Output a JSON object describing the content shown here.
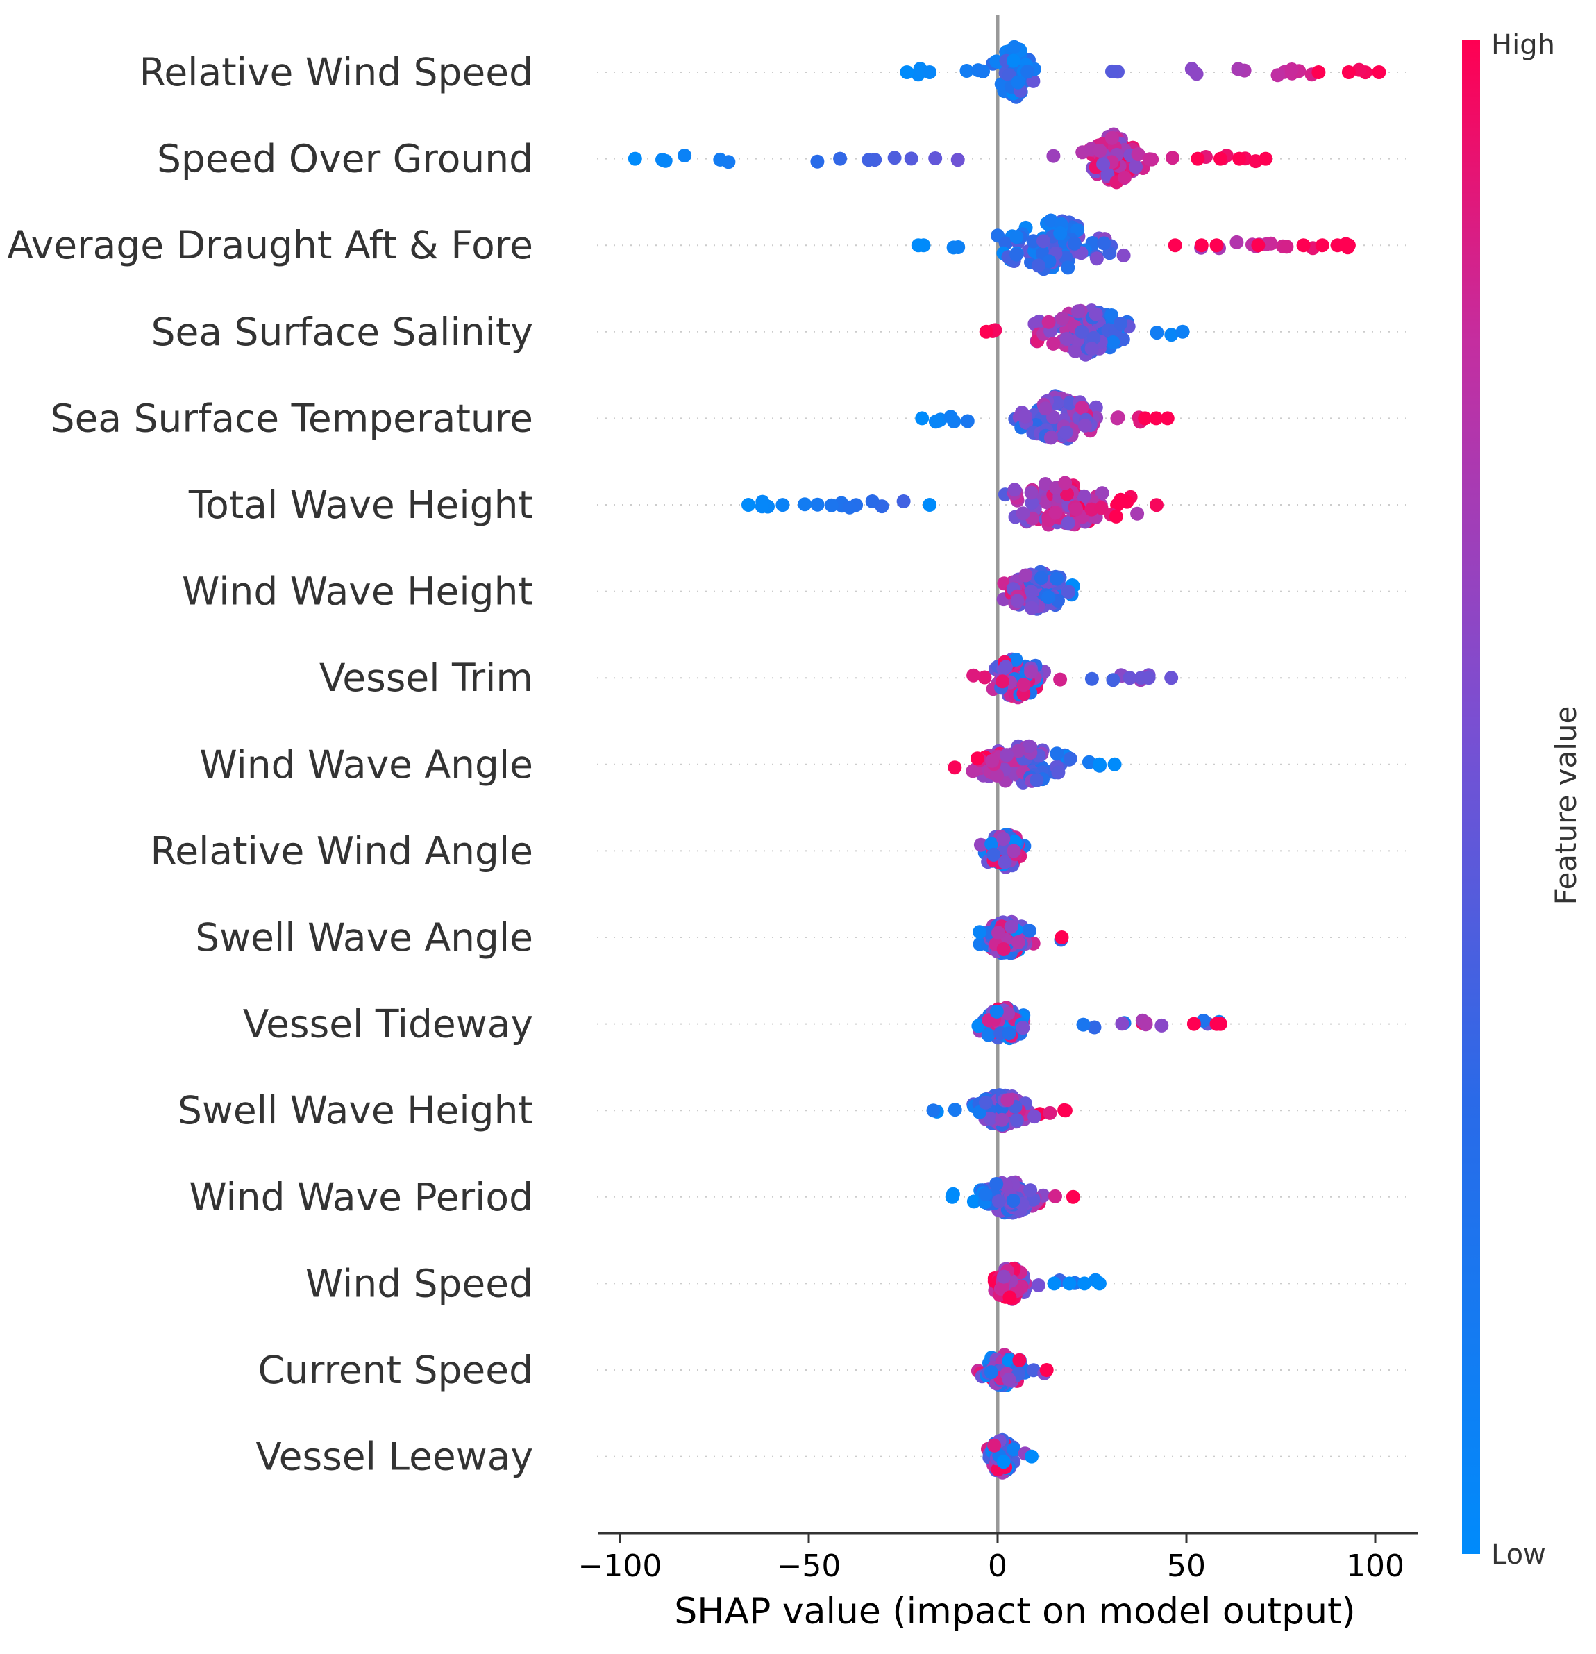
{
  "chart_data": {
    "type": "scatter",
    "subtype": "shap-beeswarm",
    "title": "",
    "xlabel": "SHAP value (impact on model output)",
    "ylabel": "",
    "xlim": [
      -105,
      112
    ],
    "xticks": [
      -100,
      -50,
      0,
      50,
      100
    ],
    "xtick_labels": [
      "−100",
      "−50",
      "0",
      "50",
      "100"
    ],
    "colorbar": {
      "label": "Feature value",
      "high_label": "High",
      "low_label": "Low",
      "high_color": "#ff0052",
      "low_color": "#008bfb"
    },
    "features": [
      {
        "name": "Relative Wind Speed",
        "min": -24,
        "max": 101,
        "core": [
          -3,
          12
        ],
        "spread": 0.45,
        "color_trend": "increasing",
        "outliers": [
          {
            "x": 85,
            "c": 1.0
          },
          {
            "x": 93,
            "c": 1.0
          },
          {
            "x": 101,
            "c": 1.0
          },
          {
            "x": -24,
            "c": 0.0
          },
          {
            "x": -18,
            "c": 0.05
          }
        ]
      },
      {
        "name": "Speed Over Ground",
        "min": -96,
        "max": 71,
        "core": [
          22,
          40
        ],
        "spread": 0.45,
        "color_trend": "increasing",
        "outliers": [
          {
            "x": -96,
            "c": 0.0
          },
          {
            "x": 53,
            "c": 1.0
          },
          {
            "x": 59,
            "c": 1.0
          },
          {
            "x": 64,
            "c": 1.0
          },
          {
            "x": 71,
            "c": 1.0
          }
        ]
      },
      {
        "name": "Average Draught Aft & Fore",
        "min": -21,
        "max": 93,
        "core": [
          -8,
          38
        ],
        "spread": 0.45,
        "color_trend": "increasing",
        "outliers": [
          {
            "x": -21,
            "c": 0.0
          },
          {
            "x": 47,
            "c": 1.0
          },
          {
            "x": 54,
            "c": 1.0
          },
          {
            "x": 58,
            "c": 1.0
          },
          {
            "x": 69,
            "c": 1.0
          },
          {
            "x": 81,
            "c": 1.0
          },
          {
            "x": 86,
            "c": 1.0
          },
          {
            "x": 90,
            "c": 1.0
          },
          {
            "x": 93,
            "c": 1.0
          }
        ]
      },
      {
        "name": "Sea Surface Salinity",
        "min": -3,
        "max": 49,
        "core": [
          5,
          42
        ],
        "spread": 0.4,
        "color_trend": "decreasing",
        "outliers": [
          {
            "x": 49,
            "c": 0.1
          },
          {
            "x": -3,
            "c": 1.0
          }
        ]
      },
      {
        "name": "Sea Surface Temperature",
        "min": -20,
        "max": 45,
        "core": [
          2,
          30
        ],
        "spread": 0.4,
        "color_trend": "increasing",
        "outliers": [
          {
            "x": -20,
            "c": 0.0
          },
          {
            "x": 39,
            "c": 1.0
          },
          {
            "x": 42,
            "c": 1.0
          },
          {
            "x": 45,
            "c": 1.0
          }
        ]
      },
      {
        "name": "Total Wave Height",
        "min": -66,
        "max": 45,
        "core": [
          -10,
          42
        ],
        "spread": 0.4,
        "color_trend": "increasing",
        "outliers": [
          {
            "x": -66,
            "c": 0.0
          },
          {
            "x": -18,
            "c": 0.0
          }
        ]
      },
      {
        "name": "Wind Wave Height",
        "min": -4,
        "max": 25,
        "core": [
          -3,
          24
        ],
        "spread": 0.35,
        "color_trend": "decreasing",
        "outliers": []
      },
      {
        "name": "Vessel Trim",
        "min": -7,
        "max": 46,
        "core": [
          -5,
          15
        ],
        "spread": 0.35,
        "color_trend": "mixed",
        "outliers": [
          {
            "x": 35,
            "c": 0.5
          },
          {
            "x": 38,
            "c": 0.5
          },
          {
            "x": 40,
            "c": 0.5
          },
          {
            "x": 46,
            "c": 0.5
          }
        ]
      },
      {
        "name": "Wind Wave Angle",
        "min": -12,
        "max": 31,
        "core": [
          -10,
          22
        ],
        "spread": 0.35,
        "color_trend": "decreasing",
        "outliers": [
          {
            "x": 27,
            "c": 0.0
          },
          {
            "x": 31,
            "c": 0.0
          }
        ]
      },
      {
        "name": "Relative Wind Angle",
        "min": -8,
        "max": 11,
        "core": [
          -7,
          11
        ],
        "spread": 0.3,
        "color_trend": "mixed",
        "outliers": []
      },
      {
        "name": "Swell Wave Angle",
        "min": -8,
        "max": 17,
        "core": [
          -7,
          12
        ],
        "spread": 0.3,
        "color_trend": "mixed",
        "outliers": [
          {
            "x": 17,
            "c": 1.0
          }
        ]
      },
      {
        "name": "Vessel Tideway",
        "min": -7,
        "max": 59,
        "core": [
          -7,
          10
        ],
        "spread": 0.3,
        "color_trend": "mixed",
        "outliers": [
          {
            "x": 52,
            "c": 1.0
          },
          {
            "x": 58,
            "c": 1.0
          },
          {
            "x": 59,
            "c": 1.0
          }
        ]
      },
      {
        "name": "Swell Wave Height",
        "min": -17,
        "max": 18,
        "core": [
          -9,
          12
        ],
        "spread": 0.3,
        "color_trend": "increasing",
        "outliers": [
          {
            "x": -17,
            "c": 0.2
          },
          {
            "x": 18,
            "c": 1.0
          }
        ]
      },
      {
        "name": "Wind Wave Period",
        "min": -12,
        "max": 20,
        "core": [
          -9,
          15
        ],
        "spread": 0.3,
        "color_trend": "increasing",
        "outliers": [
          {
            "x": -12,
            "c": 0.0
          },
          {
            "x": 20,
            "c": 1.0
          }
        ]
      },
      {
        "name": "Wind Speed",
        "min": -3,
        "max": 27,
        "core": [
          -3,
          10
        ],
        "spread": 0.3,
        "color_trend": "decreasing",
        "outliers": [
          {
            "x": 15,
            "c": 0.0
          },
          {
            "x": 19,
            "c": 0.0
          },
          {
            "x": 23,
            "c": 0.0
          },
          {
            "x": 27,
            "c": 0.0
          }
        ]
      },
      {
        "name": "Current Speed",
        "min": -7,
        "max": 13,
        "core": [
          -7,
          10
        ],
        "spread": 0.3,
        "color_trend": "mixed",
        "outliers": [
          {
            "x": 13,
            "c": 1.0
          }
        ]
      },
      {
        "name": "Vessel Leeway",
        "min": -4,
        "max": 9,
        "core": [
          -4,
          6
        ],
        "spread": 0.3,
        "color_trend": "mixed",
        "outliers": [
          {
            "x": 9,
            "c": 0.0
          }
        ]
      }
    ]
  }
}
